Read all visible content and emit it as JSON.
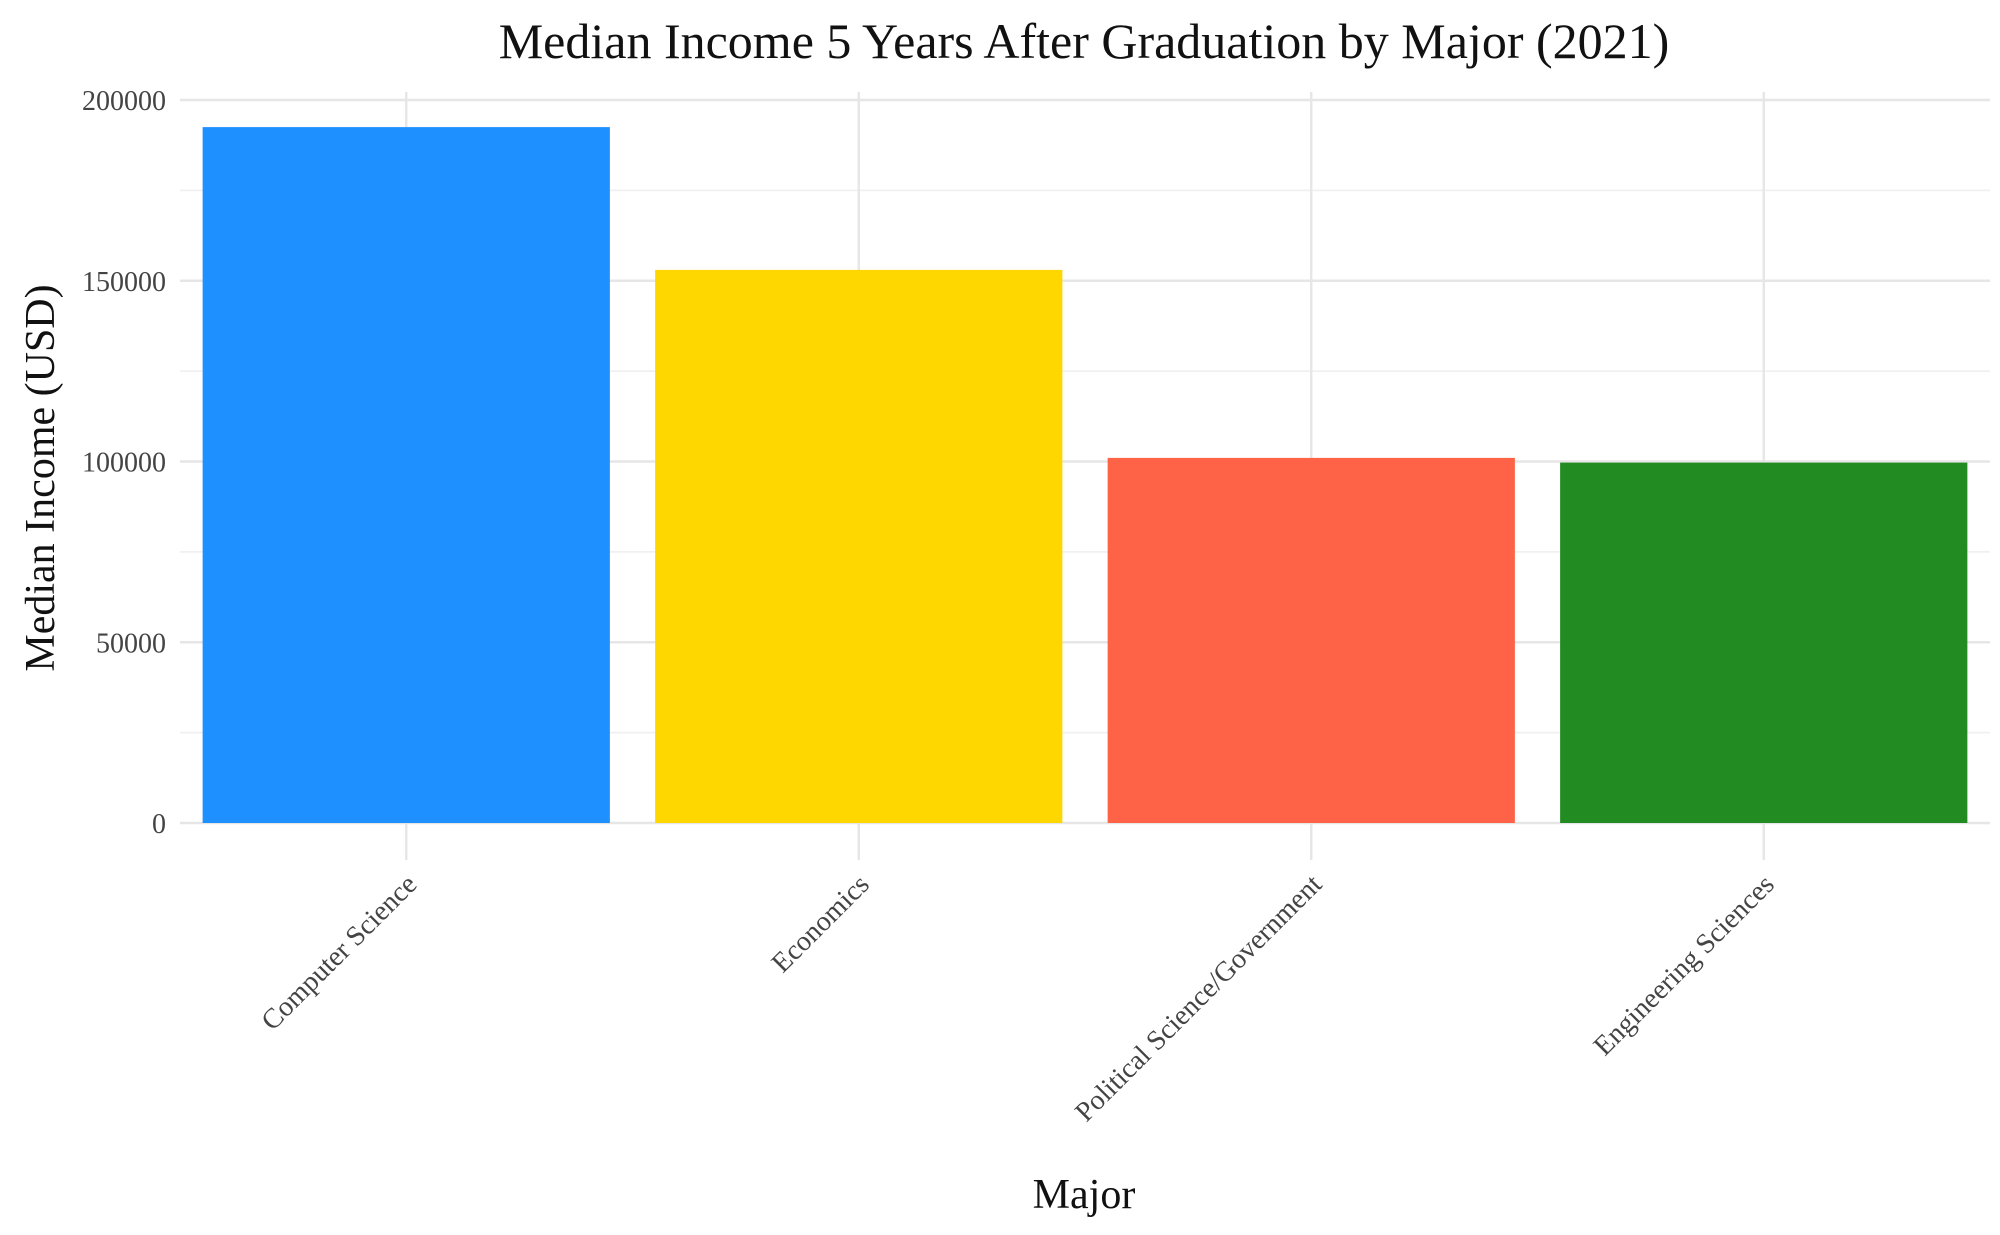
{
  "chart_data": {
    "type": "bar",
    "title": "Median Income 5 Years After Graduation by Major (2021)",
    "xlabel": "Major",
    "ylabel": "Median Income (USD)",
    "categories": [
      "Computer Science",
      "Economics",
      "Political Science/Government",
      "Engineering Sciences"
    ],
    "values": [
      192500,
      153000,
      101000,
      99700
    ],
    "colors": [
      "#1E90FF",
      "#FFD700",
      "#FF6347",
      "#228B22"
    ],
    "ylim": [
      0,
      200000
    ],
    "yticks": [
      0,
      50000,
      100000,
      150000,
      200000
    ],
    "ytick_labels": [
      "0",
      "50000",
      "100000",
      "150000",
      "200000"
    ],
    "grid": true,
    "legend": "none"
  }
}
